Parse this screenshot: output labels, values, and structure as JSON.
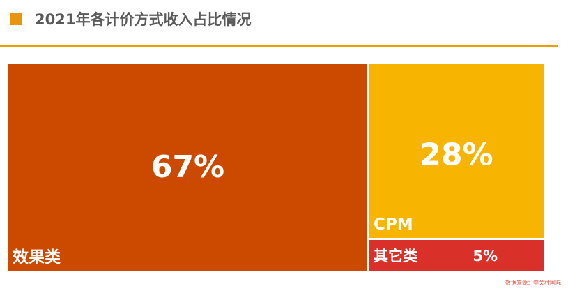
{
  "header": {
    "title": "2021年各计价方式收入占比情况",
    "accent_color": "#e8950f",
    "divider_color": "#e8a000"
  },
  "chart_data": {
    "type": "treemap",
    "title": "2021年各计价方式收入占比情况",
    "series": [
      {
        "name": "效果类",
        "value": 67,
        "label": "67%",
        "color": "#cc4a00"
      },
      {
        "name": "CPM",
        "value": 28,
        "label": "28%",
        "color": "#f7b400"
      },
      {
        "name": "其它类",
        "value": 5,
        "label": "5%",
        "color": "#d9302a"
      }
    ]
  },
  "footer": {
    "source": "数据来源：中关村国际"
  }
}
